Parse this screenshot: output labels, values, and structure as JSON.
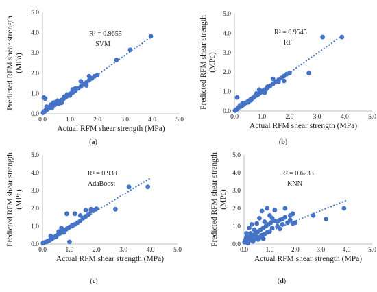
{
  "chart_data": [
    {
      "type": "scatter",
      "panel": "(a)",
      "model": "SVM",
      "r2_label": "R² = 0.9655",
      "xlabel": "Actual RFM shear strength (MPa)",
      "ylabel": "Predicted RFM shear strength (MPa)",
      "xlim": [
        0,
        5
      ],
      "ylim": [
        0,
        5
      ],
      "xticks": [
        "0.0",
        "1.0",
        "2.0",
        "3.0",
        "4.0",
        "5.0"
      ],
      "yticks": [
        "0.0",
        "1.0",
        "2.0",
        "3.0",
        "4.0",
        "5.0"
      ],
      "color": "#4472c4",
      "trendline": {
        "x": [
          0.02,
          4.0
        ],
        "y": [
          0.05,
          3.82
        ],
        "style": "dotted"
      },
      "points": [
        [
          0.02,
          0.05
        ],
        [
          0.05,
          0.1
        ],
        [
          0.08,
          0.12
        ],
        [
          0.1,
          0.15
        ],
        [
          0.12,
          0.18
        ],
        [
          0.15,
          0.2
        ],
        [
          0.18,
          0.22
        ],
        [
          0.2,
          0.25
        ],
        [
          0.22,
          0.28
        ],
        [
          0.25,
          0.3
        ],
        [
          0.28,
          0.32
        ],
        [
          0.3,
          0.35
        ],
        [
          0.32,
          0.38
        ],
        [
          0.35,
          0.4
        ],
        [
          0.4,
          0.42
        ],
        [
          0.45,
          0.45
        ],
        [
          0.5,
          0.5
        ],
        [
          0.55,
          0.55
        ],
        [
          0.6,
          0.6
        ],
        [
          0.65,
          0.62
        ],
        [
          0.7,
          0.68
        ],
        [
          0.75,
          0.72
        ],
        [
          0.8,
          0.78
        ],
        [
          0.85,
          0.82
        ],
        [
          0.9,
          0.88
        ],
        [
          0.95,
          0.92
        ],
        [
          1.0,
          0.98
        ],
        [
          1.05,
          1.02
        ],
        [
          1.1,
          1.05
        ],
        [
          1.15,
          1.1
        ],
        [
          1.2,
          1.15
        ],
        [
          1.3,
          1.25
        ],
        [
          1.4,
          1.35
        ],
        [
          1.5,
          1.45
        ],
        [
          1.6,
          1.55
        ],
        [
          1.7,
          1.65
        ],
        [
          1.8,
          1.75
        ],
        [
          1.9,
          1.85
        ],
        [
          2.0,
          1.92
        ],
        [
          0.05,
          0.8
        ],
        [
          0.1,
          0.75
        ],
        [
          0.3,
          0.45
        ],
        [
          0.5,
          0.6
        ],
        [
          0.7,
          0.55
        ],
        [
          0.9,
          0.95
        ],
        [
          1.0,
          0.9
        ],
        [
          1.2,
          1.25
        ],
        [
          1.4,
          1.6
        ],
        [
          1.6,
          1.4
        ],
        [
          1.7,
          1.85
        ],
        [
          2.7,
          2.65
        ],
        [
          3.2,
          3.15
        ],
        [
          3.95,
          3.82
        ],
        [
          0.4,
          0.55
        ],
        [
          0.6,
          0.5
        ],
        [
          0.8,
          0.85
        ],
        [
          1.1,
          1.2
        ],
        [
          0.15,
          0.35
        ],
        [
          0.35,
          0.3
        ],
        [
          0.55,
          0.65
        ]
      ]
    },
    {
      "type": "scatter",
      "panel": "(b)",
      "model": "RF",
      "r2_label": "R² = 0.9545",
      "xlabel": "Actual RFM shear strength (MPa)",
      "ylabel": "Predicted RFM shear strength (MPa)",
      "xlim": [
        0,
        5
      ],
      "ylim": [
        0,
        5
      ],
      "xticks": [
        "0.0",
        "1.0",
        "2.0",
        "3.0",
        "4.0",
        "5.0"
      ],
      "yticks": [
        "0.0",
        "1.0",
        "2.0",
        "3.0",
        "4.0",
        "5.0"
      ],
      "color": "#4472c4",
      "trendline": {
        "x": [
          0.02,
          3.9
        ],
        "y": [
          0.02,
          3.85
        ],
        "style": "dotted"
      },
      "points": [
        [
          0.02,
          0.02
        ],
        [
          0.05,
          0.05
        ],
        [
          0.08,
          0.08
        ],
        [
          0.1,
          0.1
        ],
        [
          0.12,
          0.15
        ],
        [
          0.15,
          0.18
        ],
        [
          0.2,
          0.22
        ],
        [
          0.25,
          0.25
        ],
        [
          0.3,
          0.3
        ],
        [
          0.35,
          0.35
        ],
        [
          0.4,
          0.42
        ],
        [
          0.45,
          0.45
        ],
        [
          0.5,
          0.52
        ],
        [
          0.55,
          0.55
        ],
        [
          0.6,
          0.62
        ],
        [
          0.65,
          0.65
        ],
        [
          0.7,
          0.7
        ],
        [
          0.75,
          0.78
        ],
        [
          0.8,
          0.8
        ],
        [
          0.85,
          0.85
        ],
        [
          0.9,
          0.9
        ],
        [
          0.95,
          0.95
        ],
        [
          1.0,
          1.0
        ],
        [
          1.05,
          1.05
        ],
        [
          1.1,
          1.1
        ],
        [
          1.15,
          1.12
        ],
        [
          1.2,
          1.2
        ],
        [
          1.3,
          1.3
        ],
        [
          1.4,
          1.4
        ],
        [
          1.5,
          1.5
        ],
        [
          1.6,
          1.6
        ],
        [
          1.7,
          1.7
        ],
        [
          1.8,
          1.8
        ],
        [
          1.9,
          1.9
        ],
        [
          2.0,
          1.95
        ],
        [
          0.1,
          0.7
        ],
        [
          0.3,
          0.4
        ],
        [
          0.5,
          0.45
        ],
        [
          0.9,
          1.1
        ],
        [
          1.1,
          0.95
        ],
        [
          1.4,
          1.65
        ],
        [
          1.6,
          1.5
        ],
        [
          1.8,
          1.55
        ],
        [
          2.7,
          1.95
        ],
        [
          3.2,
          3.8
        ],
        [
          3.9,
          3.8
        ],
        [
          0.6,
          0.55
        ],
        [
          0.8,
          0.9
        ],
        [
          1.2,
          1.25
        ],
        [
          0.2,
          0.3
        ]
      ]
    },
    {
      "type": "scatter",
      "panel": "(c)",
      "model": "AdaBoost",
      "r2_label": "R² = 0.939",
      "xlabel": "Actual RFM shear strength (MPa)",
      "ylabel": "Predicted RFM shear strength (MPa)",
      "xlim": [
        0,
        5
      ],
      "ylim": [
        0,
        5
      ],
      "xticks": [
        "0.0",
        "1.0",
        "2.0",
        "3.0",
        "4.0",
        "5.0"
      ],
      "yticks": [
        "0.0",
        "1.0",
        "2.0",
        "3.0",
        "4.0",
        "5.0"
      ],
      "color": "#4472c4",
      "trendline": {
        "x": [
          0.02,
          4.0
        ],
        "y": [
          0.05,
          3.7
        ],
        "style": "dotted"
      },
      "points": [
        [
          0.02,
          0.05
        ],
        [
          0.05,
          0.08
        ],
        [
          0.1,
          0.1
        ],
        [
          0.15,
          0.12
        ],
        [
          0.2,
          0.18
        ],
        [
          0.25,
          0.2
        ],
        [
          0.3,
          0.25
        ],
        [
          0.35,
          0.3
        ],
        [
          0.4,
          0.35
        ],
        [
          0.45,
          0.4
        ],
        [
          0.5,
          0.45
        ],
        [
          0.55,
          0.5
        ],
        [
          0.6,
          0.55
        ],
        [
          0.65,
          0.6
        ],
        [
          0.7,
          0.65
        ],
        [
          0.75,
          0.7
        ],
        [
          0.8,
          0.75
        ],
        [
          0.85,
          0.8
        ],
        [
          0.9,
          0.85
        ],
        [
          0.95,
          0.9
        ],
        [
          1.0,
          0.95
        ],
        [
          1.1,
          1.05
        ],
        [
          1.2,
          1.1
        ],
        [
          1.3,
          1.2
        ],
        [
          1.4,
          1.3
        ],
        [
          1.5,
          1.45
        ],
        [
          1.6,
          1.55
        ],
        [
          1.7,
          1.65
        ],
        [
          1.8,
          1.85
        ],
        [
          1.9,
          1.9
        ],
        [
          2.0,
          1.98
        ],
        [
          0.3,
          0.45
        ],
        [
          0.5,
          0.4
        ],
        [
          0.7,
          0.9
        ],
        [
          0.9,
          1.7
        ],
        [
          1.0,
          0.12
        ],
        [
          1.2,
          1.7
        ],
        [
          1.4,
          1.6
        ],
        [
          1.6,
          1.9
        ],
        [
          1.8,
          1.95
        ],
        [
          2.7,
          1.95
        ],
        [
          3.2,
          3.2
        ],
        [
          3.9,
          3.2
        ],
        [
          0.6,
          0.7
        ],
        [
          0.8,
          0.65
        ],
        [
          1.1,
          1.0
        ]
      ]
    },
    {
      "type": "scatter",
      "panel": "(d)",
      "model": "KNN",
      "r2_label": "R² = 0.6233",
      "xlabel": "Actual RFM shear strength (MPa)",
      "ylabel": "Predicted RFM shear strength (MPa)",
      "xlim": [
        0,
        5
      ],
      "ylim": [
        0,
        5
      ],
      "xticks": [
        "0.0",
        "1.0",
        "2.0",
        "3.0",
        "4.0",
        "5.0"
      ],
      "yticks": [
        "0.0",
        "1.0",
        "2.0",
        "3.0",
        "4.0",
        "5.0"
      ],
      "color": "#4472c4",
      "trendline": {
        "x": [
          0.02,
          4.0
        ],
        "y": [
          0.15,
          2.45
        ],
        "style": "dotted"
      },
      "points": [
        [
          0.02,
          0.1
        ],
        [
          0.05,
          0.2
        ],
        [
          0.08,
          0.3
        ],
        [
          0.1,
          0.4
        ],
        [
          0.12,
          0.15
        ],
        [
          0.15,
          0.35
        ],
        [
          0.2,
          0.2
        ],
        [
          0.25,
          0.45
        ],
        [
          0.3,
          0.3
        ],
        [
          0.35,
          0.5
        ],
        [
          0.4,
          0.25
        ],
        [
          0.45,
          0.6
        ],
        [
          0.5,
          0.4
        ],
        [
          0.55,
          0.7
        ],
        [
          0.6,
          0.35
        ],
        [
          0.65,
          0.8
        ],
        [
          0.7,
          0.5
        ],
        [
          0.75,
          0.9
        ],
        [
          0.8,
          0.55
        ],
        [
          0.85,
          1.0
        ],
        [
          0.9,
          0.65
        ],
        [
          0.95,
          1.1
        ],
        [
          1.0,
          0.7
        ],
        [
          1.05,
          1.2
        ],
        [
          1.1,
          0.9
        ],
        [
          1.2,
          1.3
        ],
        [
          1.3,
          1.0
        ],
        [
          1.4,
          1.35
        ],
        [
          1.5,
          1.1
        ],
        [
          1.6,
          1.5
        ],
        [
          1.7,
          1.2
        ],
        [
          1.8,
          1.6
        ],
        [
          1.9,
          1.7
        ],
        [
          2.0,
          1.2
        ],
        [
          0.1,
          0.6
        ],
        [
          0.2,
          0.9
        ],
        [
          0.3,
          1.1
        ],
        [
          0.5,
          1.15
        ],
        [
          0.6,
          1.45
        ],
        [
          0.7,
          1.85
        ],
        [
          0.9,
          2.0
        ],
        [
          1.0,
          1.6
        ],
        [
          1.2,
          1.9
        ],
        [
          1.3,
          1.25
        ],
        [
          1.5,
          1.4
        ],
        [
          1.6,
          2.0
        ],
        [
          1.8,
          1.35
        ],
        [
          1.9,
          1.15
        ],
        [
          2.7,
          1.6
        ],
        [
          3.2,
          1.4
        ],
        [
          3.9,
          2.0
        ],
        [
          0.4,
          0.8
        ],
        [
          0.8,
          1.25
        ],
        [
          1.1,
          1.45
        ],
        [
          0.15,
          0.05
        ],
        [
          0.35,
          0.15
        ],
        [
          0.55,
          0.25
        ],
        [
          0.75,
          0.3
        ],
        [
          1.4,
          0.85
        ],
        [
          0.25,
          0.6
        ]
      ]
    }
  ]
}
